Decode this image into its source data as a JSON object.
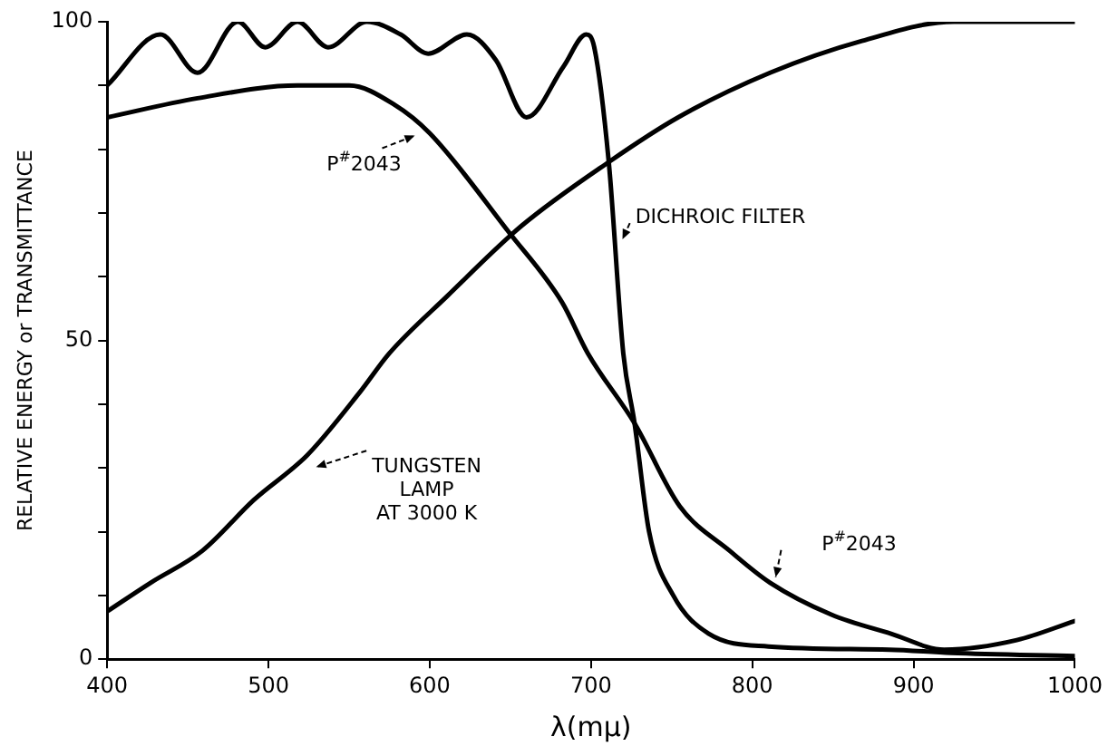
{
  "chart_data": {
    "type": "line",
    "xlabel": "λ(mμ)",
    "ylabel": "RELATIVE ENERGY or TRANSMITTANCE",
    "xlim": [
      400,
      1000
    ],
    "xticks": [
      400,
      500,
      600,
      700,
      800,
      900,
      1000
    ],
    "ylim": [
      0,
      100
    ],
    "yticks": [
      0,
      {
        "value": 10,
        "label": null
      },
      {
        "value": 20,
        "label": null
      },
      {
        "value": 30,
        "label": null
      },
      {
        "value": 40,
        "label": null
      },
      50,
      {
        "value": 60,
        "label": null
      },
      {
        "value": 70,
        "label": null
      },
      {
        "value": 80,
        "label": null
      },
      {
        "value": 90,
        "label": null
      },
      100
    ],
    "grid": false,
    "legend": false,
    "marker": "none",
    "line_style": "solid",
    "series": [
      {
        "color": "#000000",
        "x": [
          400,
          433,
          456,
          481,
          498,
          518,
          537,
          561,
          582,
          599,
          623,
          641,
          660,
          683,
          697,
          702,
          711,
          720,
          727,
          736,
          751,
          773,
          810,
          885,
          923,
          1000
        ],
        "values": [
          90,
          98,
          92,
          100,
          96,
          100,
          96,
          100,
          98,
          95,
          98,
          94,
          85,
          93,
          98,
          96,
          78,
          48,
          37,
          20,
          10,
          4,
          2,
          1.5,
          1,
          0.5
        ]
      },
      {
        "color": "#000000",
        "x": [
          400,
          456,
          518,
          550,
          578,
          600,
          649,
          682,
          698,
          727,
          755,
          786,
          811,
          849,
          886,
          919,
          964,
          1000
        ],
        "values": [
          85,
          88,
          90,
          90,
          87,
          82.5,
          67,
          56,
          48,
          37,
          24,
          17,
          12,
          7,
          4,
          1.5,
          3,
          6
        ]
      },
      {
        "color": "#000000",
        "x": [
          400,
          427,
          459,
          491,
          524,
          557,
          575,
          611,
          657,
          711,
          754,
          811,
          868,
          925,
          1000
        ],
        "values": [
          7.5,
          12,
          17,
          25,
          32,
          42,
          48,
          57,
          68,
          78,
          85,
          92,
          97,
          100,
          100
        ]
      }
    ],
    "annotations": [
      {
        "text": "P$^{#}$2043",
        "x": 593,
        "y": 83
      },
      {
        "text": "DICHROIC FILTER",
        "x": 715,
        "y": 65
      },
      {
        "text": "TUNGSTEN\nLAMP\nAT 3000 K",
        "x": 525,
        "y": 31
      },
      {
        "text": "P$^{#}$2043",
        "x": 810,
        "y": 12
      }
    ]
  }
}
